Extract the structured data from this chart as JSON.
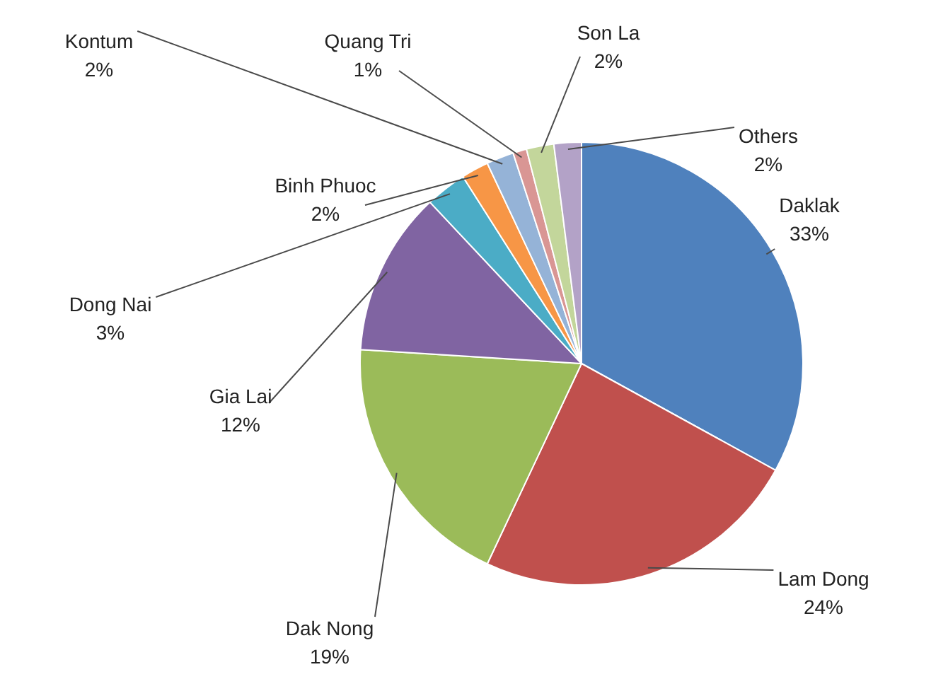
{
  "chart_data": {
    "type": "pie",
    "categories": [
      "Daklak",
      "Lam Dong",
      "Dak Nong",
      "Gia Lai",
      "Dong Nai",
      "Binh Phuoc",
      "Kontum",
      "Quang Tri",
      "Son La",
      "Others"
    ],
    "values": [
      33,
      24,
      19,
      12,
      3,
      2,
      2,
      1,
      2,
      2
    ],
    "value_labels": [
      "33%",
      "24%",
      "19%",
      "12%",
      "3%",
      "2%",
      "2%",
      "1%",
      "2%",
      "2%"
    ],
    "colors": [
      "#4f81bd",
      "#c0504d",
      "#9bbb59",
      "#8064a2",
      "#4bacc6",
      "#f79646",
      "#95b3d7",
      "#d99694",
      "#c3d69b",
      "#b3a2c7"
    ],
    "legend": false
  }
}
